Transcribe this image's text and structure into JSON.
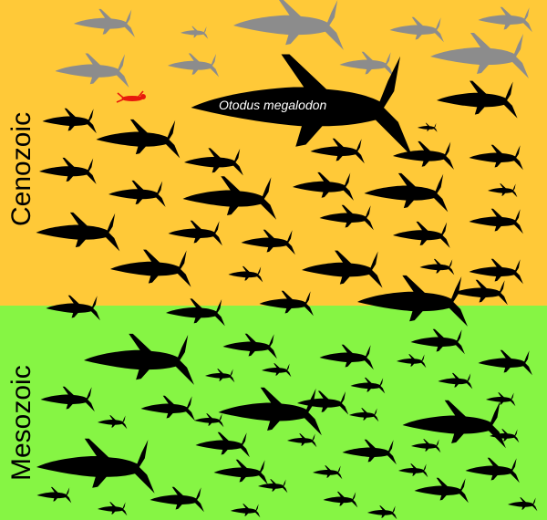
{
  "periods": [
    {
      "name": "Cenozoic",
      "color": "#ffc938"
    },
    {
      "name": "Mesozoic",
      "color": "#86f544"
    }
  ],
  "highlight_species": "Otodus megalodon",
  "colors": {
    "modern_sharks": "#8c8c8c",
    "fossil_sharks": "#000000",
    "human": "#e8180c"
  },
  "icons": {
    "shark": "shark-silhouette-icon",
    "human": "swimming-human-icon"
  }
}
